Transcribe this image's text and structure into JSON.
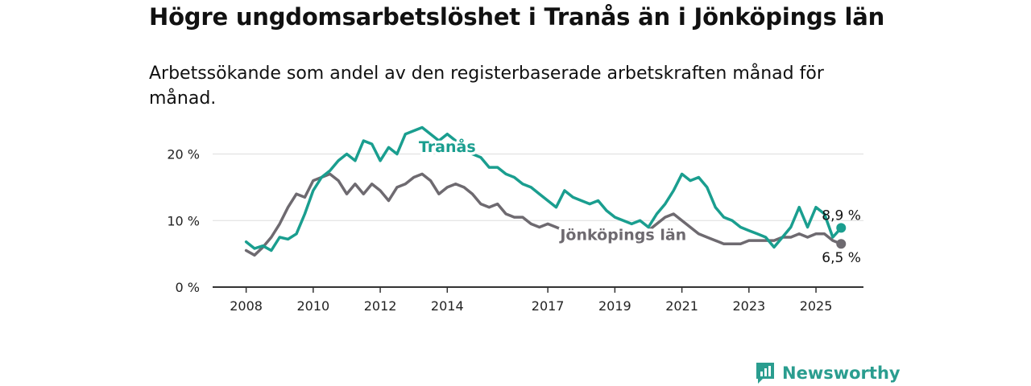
{
  "title": "Högre ungdomsarbetslöshet i Tranås än i Jönköpings län",
  "subtitle": "Arbetssökande som andel av den registerbaserade arbetskraften månad för månad.",
  "brand": {
    "name": "Newsworthy",
    "icon": "newsworthy-logo-icon"
  },
  "colors": {
    "tranas": "#1a9e8f",
    "jonkoping": "#6e6a70",
    "grid": "#dddddd",
    "axis": "#333333"
  },
  "chart_data": {
    "type": "line",
    "x_type": "date",
    "xlim": [
      "2007-01",
      "2026-06"
    ],
    "ylim": [
      0,
      22
    ],
    "grid": true,
    "y_ticks": [
      0,
      10,
      20
    ],
    "y_tick_labels": [
      "0 %",
      "10 %",
      "20 %"
    ],
    "x_ticks": [
      "2008-01",
      "2010-01",
      "2012-01",
      "2014-01",
      "2017-01",
      "2019-01",
      "2021-01",
      "2023-01",
      "2025-01"
    ],
    "x_tick_labels": [
      "2008",
      "2010",
      "2012",
      "2014",
      "2017",
      "2019",
      "2021",
      "2023",
      "2025"
    ],
    "series": [
      {
        "name": "Tranås",
        "color": "#1a9e8f",
        "end_label": "8,9 %",
        "points": [
          [
            "2008-01",
            6.8
          ],
          [
            "2008-04",
            5.8
          ],
          [
            "2008-07",
            6.2
          ],
          [
            "2008-10",
            5.5
          ],
          [
            "2009-01",
            7.5
          ],
          [
            "2009-04",
            7.2
          ],
          [
            "2009-07",
            8.0
          ],
          [
            "2009-10",
            11.0
          ],
          [
            "2010-01",
            14.5
          ],
          [
            "2010-04",
            16.5
          ],
          [
            "2010-07",
            17.5
          ],
          [
            "2010-10",
            19.0
          ],
          [
            "2011-01",
            20.0
          ],
          [
            "2011-04",
            19.0
          ],
          [
            "2011-07",
            22.0
          ],
          [
            "2011-10",
            21.5
          ],
          [
            "2012-01",
            19.0
          ],
          [
            "2012-04",
            21.0
          ],
          [
            "2012-07",
            20.0
          ],
          [
            "2012-10",
            23.0
          ],
          [
            "2013-01",
            23.5
          ],
          [
            "2013-04",
            24.0
          ],
          [
            "2013-07",
            23.0
          ],
          [
            "2013-10",
            22.0
          ],
          [
            "2014-01",
            23.0
          ],
          [
            "2014-04",
            22.0
          ],
          [
            "2014-07",
            21.0
          ],
          [
            "2014-10",
            20.0
          ],
          [
            "2015-01",
            19.5
          ],
          [
            "2015-04",
            18.0
          ],
          [
            "2015-07",
            18.0
          ],
          [
            "2015-10",
            17.0
          ],
          [
            "2016-01",
            16.5
          ],
          [
            "2016-04",
            15.5
          ],
          [
            "2016-07",
            15.0
          ],
          [
            "2016-10",
            14.0
          ],
          [
            "2017-01",
            13.0
          ],
          [
            "2017-04",
            12.0
          ],
          [
            "2017-07",
            14.5
          ],
          [
            "2017-10",
            13.5
          ],
          [
            "2018-01",
            13.0
          ],
          [
            "2018-04",
            12.5
          ],
          [
            "2018-07",
            13.0
          ],
          [
            "2018-10",
            11.5
          ],
          [
            "2019-01",
            10.5
          ],
          [
            "2019-04",
            10.0
          ],
          [
            "2019-07",
            9.5
          ],
          [
            "2019-10",
            10.0
          ],
          [
            "2020-01",
            9.0
          ],
          [
            "2020-04",
            11.0
          ],
          [
            "2020-07",
            12.5
          ],
          [
            "2020-10",
            14.5
          ],
          [
            "2021-01",
            17.0
          ],
          [
            "2021-04",
            16.0
          ],
          [
            "2021-07",
            16.5
          ],
          [
            "2021-10",
            15.0
          ],
          [
            "2022-01",
            12.0
          ],
          [
            "2022-04",
            10.5
          ],
          [
            "2022-07",
            10.0
          ],
          [
            "2022-10",
            9.0
          ],
          [
            "2023-01",
            8.5
          ],
          [
            "2023-04",
            8.0
          ],
          [
            "2023-07",
            7.5
          ],
          [
            "2023-10",
            6.0
          ],
          [
            "2024-01",
            7.5
          ],
          [
            "2024-04",
            9.0
          ],
          [
            "2024-07",
            12.0
          ],
          [
            "2024-10",
            9.0
          ],
          [
            "2025-01",
            12.0
          ],
          [
            "2025-04",
            11.0
          ],
          [
            "2025-07",
            7.5
          ],
          [
            "2025-10",
            8.9
          ]
        ]
      },
      {
        "name": "Jönköpings län",
        "color": "#6e6a70",
        "end_label": "6,5 %",
        "points": [
          [
            "2008-01",
            5.5
          ],
          [
            "2008-04",
            4.8
          ],
          [
            "2008-07",
            6.0
          ],
          [
            "2008-10",
            7.5
          ],
          [
            "2009-01",
            9.5
          ],
          [
            "2009-04",
            12.0
          ],
          [
            "2009-07",
            14.0
          ],
          [
            "2009-10",
            13.5
          ],
          [
            "2010-01",
            16.0
          ],
          [
            "2010-04",
            16.5
          ],
          [
            "2010-07",
            17.0
          ],
          [
            "2010-10",
            16.0
          ],
          [
            "2011-01",
            14.0
          ],
          [
            "2011-04",
            15.5
          ],
          [
            "2011-07",
            14.0
          ],
          [
            "2011-10",
            15.5
          ],
          [
            "2012-01",
            14.5
          ],
          [
            "2012-04",
            13.0
          ],
          [
            "2012-07",
            15.0
          ],
          [
            "2012-10",
            15.5
          ],
          [
            "2013-01",
            16.5
          ],
          [
            "2013-04",
            17.0
          ],
          [
            "2013-07",
            16.0
          ],
          [
            "2013-10",
            14.0
          ],
          [
            "2014-01",
            15.0
          ],
          [
            "2014-04",
            15.5
          ],
          [
            "2014-07",
            15.0
          ],
          [
            "2014-10",
            14.0
          ],
          [
            "2015-01",
            12.5
          ],
          [
            "2015-04",
            12.0
          ],
          [
            "2015-07",
            12.5
          ],
          [
            "2015-10",
            11.0
          ],
          [
            "2016-01",
            10.5
          ],
          [
            "2016-04",
            10.5
          ],
          [
            "2016-07",
            9.5
          ],
          [
            "2016-10",
            9.0
          ],
          [
            "2017-01",
            9.5
          ],
          [
            "2017-04",
            9.0
          ],
          [
            "2017-07",
            8.5
          ],
          [
            "2017-10",
            8.0
          ],
          [
            "2018-01",
            8.0
          ],
          [
            "2018-04",
            7.5
          ],
          [
            "2018-07",
            7.5
          ],
          [
            "2018-10",
            7.0
          ],
          [
            "2019-01",
            7.0
          ],
          [
            "2019-04",
            7.0
          ],
          [
            "2019-07",
            7.5
          ],
          [
            "2019-10",
            8.0
          ],
          [
            "2020-01",
            8.5
          ],
          [
            "2020-04",
            9.5
          ],
          [
            "2020-07",
            10.5
          ],
          [
            "2020-10",
            11.0
          ],
          [
            "2021-01",
            10.0
          ],
          [
            "2021-04",
            9.0
          ],
          [
            "2021-07",
            8.0
          ],
          [
            "2021-10",
            7.5
          ],
          [
            "2022-01",
            7.0
          ],
          [
            "2022-04",
            6.5
          ],
          [
            "2022-07",
            6.5
          ],
          [
            "2022-10",
            6.5
          ],
          [
            "2023-01",
            7.0
          ],
          [
            "2023-04",
            7.0
          ],
          [
            "2023-07",
            7.0
          ],
          [
            "2023-10",
            7.0
          ],
          [
            "2024-01",
            7.5
          ],
          [
            "2024-04",
            7.5
          ],
          [
            "2024-07",
            8.0
          ],
          [
            "2024-10",
            7.5
          ],
          [
            "2025-01",
            8.0
          ],
          [
            "2025-04",
            8.0
          ],
          [
            "2025-07",
            7.0
          ],
          [
            "2025-10",
            6.5
          ]
        ]
      }
    ]
  }
}
